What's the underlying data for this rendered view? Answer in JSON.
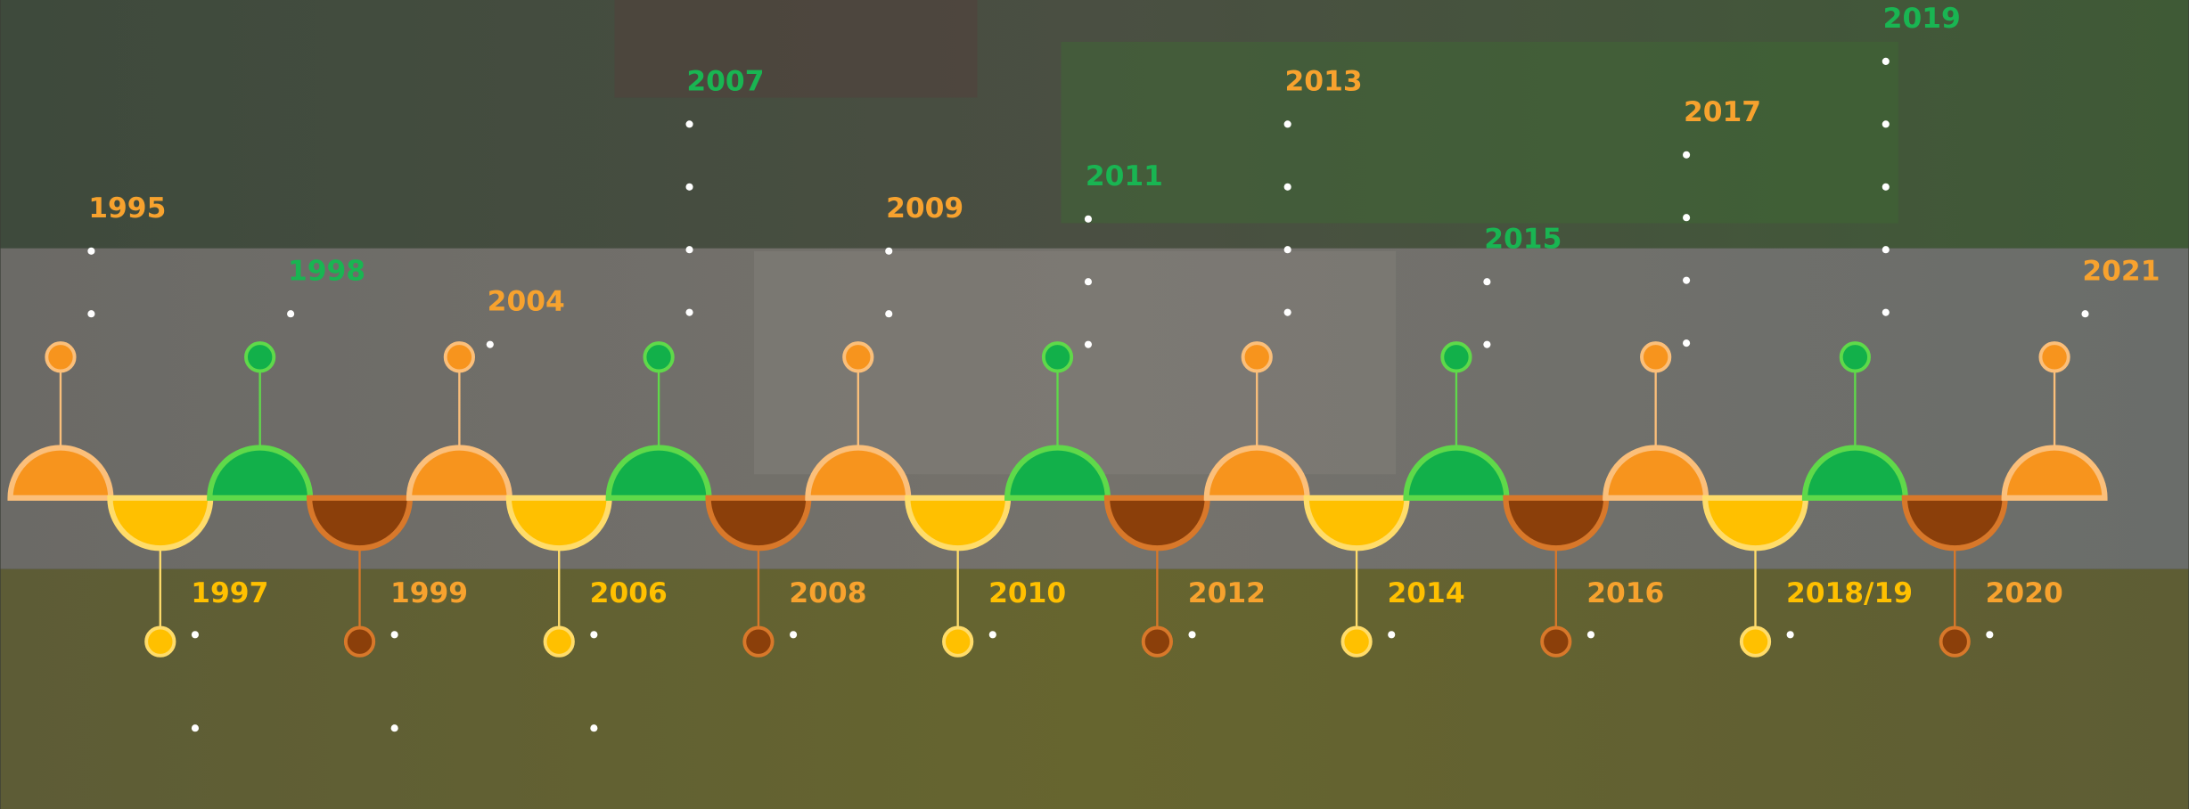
{
  "timeline": {
    "milestones": [
      "1995",
      "1997",
      "1998",
      "1999",
      "2004",
      "2006",
      "2007",
      "2008",
      "2009",
      "2010",
      "2011",
      "2012",
      "2013",
      "2014",
      "2015",
      "2016",
      "2017",
      "2018/19",
      "2019",
      "2020",
      "2021"
    ]
  }
}
